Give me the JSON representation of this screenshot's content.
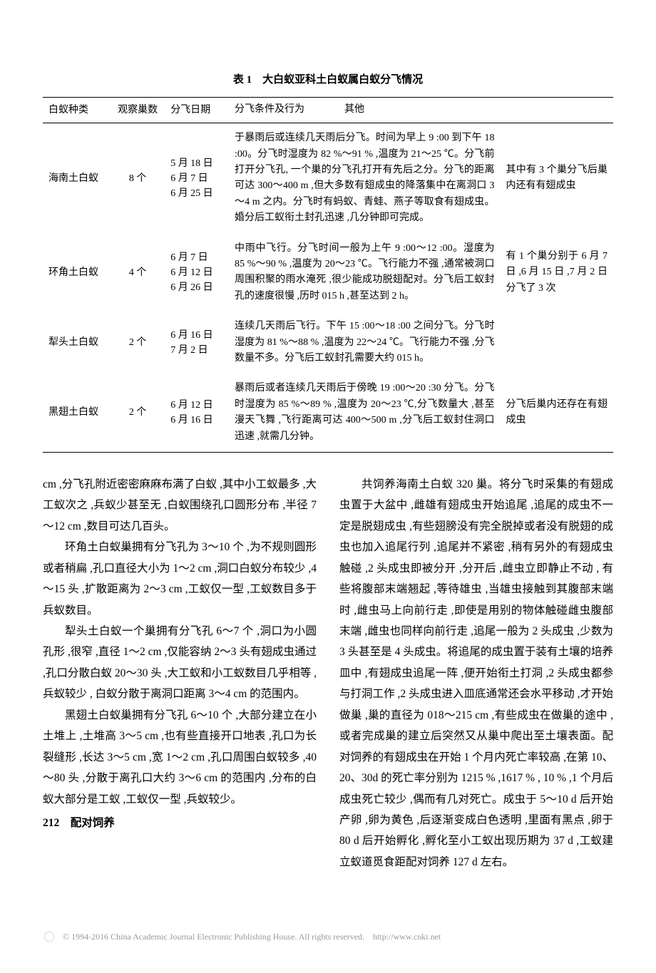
{
  "table": {
    "title": "表 1　大白蚁亚科土白蚁属白蚁分飞情况",
    "headers": {
      "species": "白蚁种类",
      "nest": "观察巢数",
      "date": "分飞日期",
      "conditions": "分飞条件及行为",
      "other": "其他"
    },
    "rows": [
      {
        "species": "海南土白蚁",
        "nest": "8 个",
        "dates": [
          "5 月 18 日",
          "6 月 7 日",
          "6 月 25 日"
        ],
        "conditions": "于暴雨后或连续几天雨后分飞。时间为早上 9 :00 到下午 18 :00。分飞时湿度为 82 %～91 % ,温度为 21～25 ℃。分飞前打开分飞孔, 一个巢的分飞孔打开有先后之分。分飞的距离可达 300～400 m ,但​大多数有翅成虫的降落集中在离洞口 3～4 m 之内。分飞时有蚂蚁、青蛙、燕子等取食有翅成虫。婚分后工蚁衔土封孔迅速 ,几分钟即可完成。",
        "other": "其中有 3 个巢分飞后巢内还有有翅成虫"
      },
      {
        "species": "环角土白蚁",
        "nest": "4 个",
        "dates": [
          "6 月 7 日",
          "6 月 12 日",
          "6 月 26 日"
        ],
        "conditions": "中雨中飞行。分飞时间一般为上午 9 :00～12 :00。湿度为 85 %～90 % ,温度为 20～23 ℃。飞行能力不强 ,通常被洞口周围积聚的雨水淹死 ,很少能成功脱翅配对。分飞后工蚁封孔的速度很慢 ,历时 015 h ,甚至达到 2 h。",
        "other": "有 1 个巢分别于 6 月 7 日 ,6 月 15 日 ,7 月 2 日分飞了 3 次"
      },
      {
        "species": "犁头土白蚁",
        "nest": "2 个",
        "dates": [
          "6 月 16 日",
          "7 月 2 日"
        ],
        "conditions": "连续几天雨后飞行。下午 15 :00～18 :00 之间分飞。分飞时湿度为 81 %～88 % ,温度为 22～24 ℃。飞行能力不强 ,分飞数量不多。分飞后工蚁封孔需要大约 015 h。",
        "other": ""
      },
      {
        "species": "黑翅土白蚁",
        "nest": "2 个",
        "dates": [
          "6 月 12 日",
          "6 月 16 日"
        ],
        "conditions": "暴雨后或者连续几天雨后于傍晚 19 :00～20 :30 分飞。分飞时湿度为 85 %～89 % ,温度为 20～23 ℃,分飞数量大 ,甚至漫天飞舞 ,飞行距离可达 400～500 m ,分飞后工蚁封住洞口迅速 ,就需几分钟。",
        "other": "分飞后巢内还存在有翅成虫"
      }
    ]
  },
  "paragraphs": {
    "p0": "cm ,分飞孔附近密密麻麻布满了白蚁 ,其中小工蚁最多 ,大工蚁次之 ,兵蚁少甚至无 ,白蚁围绕孔口圆形分布 ,半径 7～12 cm ,数目可达几百头。",
    "p1": "环角土白蚁巢拥有分飞孔为 3～10 个 ,为不规则圆形或者稍扁 ,孔口直径大小为 1～2 cm ,洞口白蚁分布较少 ,4～15 头 ,扩散距离为 2～3 cm ,工蚁仅一型 ,工蚁数目多于兵蚁数目。",
    "p2": "犁头土白蚁一个巢拥有分飞孔 6～7 个 ,洞口为小圆孔形 ,很窄 ,直径 1～2 cm ,仅能容纳 2～3 头有翅成虫通过 ,孔口分散白蚁 20～30 头 ,大工蚁和小工蚁数目几乎相等 ,兵蚁较少 , 白蚁分散于离洞口距离 3～4 cm 的范围内。",
    "p3": "黑翅土白蚁巢拥有分飞孔 6～10 个 ,大部分建立在小土堆上 ,土堆高 3～5 cm ,也有些直接开口地表 ,孔口为长裂缝形 ,长达 3～5 cm ,宽 1～2 cm ,孔口周围白蚁较多 ,40～80 头 ,分散于离孔口大约 3～6 cm 的范围内 ,分布的白蚁大部分是工蚁 ,工蚁仅一型 ,兵蚁较少。",
    "h1": "212　配对饲养",
    "p4": "共饲养海南土白蚁 320 巢。将分飞时采集的有翅成虫置于大盆中 ,雌雄有翅成虫开始追尾 ,追尾的成虫不一定是脱翅成虫 ,有些翅膀没有完全脱掉或者没有脱翅的成虫也加入追尾行列 ,追尾并不紧密 ,稍有另外的有翅成虫触碰 ,2 头成虫即被分开 ,分开后 ,雌虫立即静止不动 , 有些将腹部末端翘起 ,等待雄虫 ,当雄虫接触到其腹部末端时 ,雌虫马上向前行走 ,即使是用别的物体触碰雌虫腹部末端 ,雌虫也同样向前行走 ,追尾一般为 2 头成虫 ,少数为 3 头甚至是 4 头成虫。将追尾的成虫置于装有土壤的培养皿中 ,有翅成虫追尾一阵 ,便开始衔土打洞 ,2 头成虫都参与打洞工作 ,2 头成虫进入皿底通常还会水平移动 ,才开始做巢 ,巢的直径为 018～215 cm ,有些成虫在做巢的途中 ,或者完成巢的建立后突然又从巢中爬出至土壤表面。配对饲养的有翅成虫在开始 1 个月内死亡率较高 ,在第 10、20、30d 的死亡率分别为 1215 % ,1617 % , 10 % ,1 个月后成虫死亡较少 ,偶而有几对死亡。成虫于 5～10 d 后开始产卵 ,卵为黄色 ,后逐渐变成白色透明 ,里面有黑点 ,卵于 80 d 后开始孵化 ,孵化至小工蚁出现历期为 37 d ,工蚁建立蚁道觅食距配对饲养 127 d 左右。"
  },
  "footer": {
    "text": "© 1994-2016 China Academic Journal Electronic Publishing House. All rights reserved.　http://www.cnki.net"
  }
}
